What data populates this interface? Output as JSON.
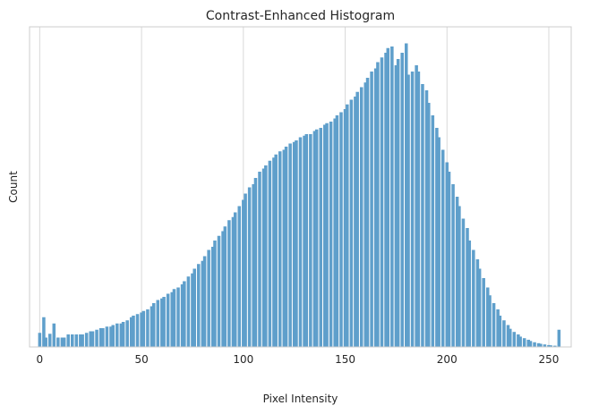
{
  "chart_data": {
    "type": "bar",
    "title": "Contrast-Enhanced Histogram",
    "xlabel": "Pixel Intensity",
    "ylabel": "Count",
    "xlim": [
      -5,
      261
    ],
    "ylim": [
      0,
      1.0
    ],
    "xticks": [
      0,
      50,
      100,
      150,
      200,
      250
    ],
    "grid": "vertical",
    "bar_color": "#5f9fcb",
    "x": [
      0,
      1,
      2,
      3,
      4,
      5,
      6,
      7,
      8,
      9,
      10,
      11,
      12,
      13,
      14,
      15,
      16,
      17,
      18,
      19,
      20,
      21,
      22,
      23,
      24,
      25,
      26,
      27,
      28,
      29,
      30,
      31,
      32,
      33,
      34,
      35,
      36,
      37,
      38,
      39,
      40,
      41,
      42,
      43,
      44,
      45,
      46,
      47,
      48,
      49,
      50,
      51,
      52,
      53,
      54,
      55,
      56,
      57,
      58,
      59,
      60,
      61,
      62,
      63,
      64,
      65,
      66,
      67,
      68,
      69,
      70,
      71,
      72,
      73,
      74,
      75,
      76,
      77,
      78,
      79,
      80,
      81,
      82,
      83,
      84,
      85,
      86,
      87,
      88,
      89,
      90,
      91,
      92,
      93,
      94,
      95,
      96,
      97,
      98,
      99,
      100,
      101,
      102,
      103,
      104,
      105,
      106,
      107,
      108,
      109,
      110,
      111,
      112,
      113,
      114,
      115,
      116,
      117,
      118,
      119,
      120,
      121,
      122,
      123,
      124,
      125,
      126,
      127,
      128,
      129,
      130,
      131,
      132,
      133,
      134,
      135,
      136,
      137,
      138,
      139,
      140,
      141,
      142,
      143,
      144,
      145,
      146,
      147,
      148,
      149,
      150,
      151,
      152,
      153,
      154,
      155,
      156,
      157,
      158,
      159,
      160,
      161,
      162,
      163,
      164,
      165,
      166,
      167,
      168,
      169,
      170,
      171,
      172,
      173,
      174,
      175,
      176,
      177,
      178,
      179,
      180,
      181,
      182,
      183,
      184,
      185,
      186,
      187,
      188,
      189,
      190,
      191,
      192,
      193,
      194,
      195,
      196,
      197,
      198,
      199,
      200,
      201,
      202,
      203,
      204,
      205,
      206,
      207,
      208,
      209,
      210,
      211,
      212,
      213,
      214,
      215,
      216,
      217,
      218,
      219,
      220,
      221,
      222,
      223,
      224,
      225,
      226,
      227,
      228,
      229,
      230,
      231,
      232,
      233,
      234,
      235,
      236,
      237,
      238,
      239,
      240,
      241,
      242,
      243,
      244,
      245,
      246,
      247,
      248,
      249,
      250,
      251,
      252,
      253,
      254,
      255
    ],
    "values": [
      0.045,
      0,
      0.095,
      0.03,
      0,
      0.042,
      0,
      0.075,
      0,
      0.03,
      0,
      0.03,
      0.03,
      0,
      0.04,
      0,
      0.04,
      0,
      0.04,
      0,
      0.04,
      0.04,
      0,
      0.045,
      0,
      0.05,
      0.05,
      0,
      0.055,
      0,
      0.06,
      0.06,
      0,
      0.065,
      0,
      0.065,
      0.07,
      0,
      0.075,
      0,
      0.075,
      0.08,
      0,
      0.085,
      0,
      0.095,
      0.1,
      0,
      0.105,
      0,
      0.11,
      0.115,
      0,
      0.12,
      0,
      0.13,
      0.14,
      0,
      0.15,
      0,
      0.155,
      0.16,
      0,
      0.17,
      0,
      0.175,
      0.185,
      0,
      0.19,
      0,
      0.2,
      0.21,
      0,
      0.225,
      0,
      0.235,
      0.25,
      0,
      0.265,
      0,
      0.275,
      0.29,
      0,
      0.31,
      0,
      0.32,
      0.34,
      0,
      0.355,
      0,
      0.37,
      0.385,
      0,
      0.405,
      0,
      0.415,
      0.43,
      0,
      0.45,
      0,
      0.47,
      0.49,
      0,
      0.51,
      0,
      0.52,
      0.54,
      0,
      0.56,
      0,
      0.57,
      0.58,
      0,
      0.595,
      0,
      0.605,
      0.615,
      0,
      0.625,
      0,
      0.63,
      0.64,
      0,
      0.65,
      0,
      0.655,
      0.66,
      0,
      0.67,
      0,
      0.675,
      0.68,
      0,
      0.68,
      0,
      0.69,
      0.695,
      0,
      0.7,
      0,
      0.71,
      0.715,
      0,
      0.72,
      0,
      0.73,
      0.74,
      0,
      0.75,
      0,
      0.76,
      0.775,
      0,
      0.79,
      0,
      0.8,
      0.815,
      0,
      0.83,
      0,
      0.845,
      0.86,
      0,
      0.88,
      0,
      0.89,
      0.91,
      0,
      0.925,
      0,
      0.94,
      0.955,
      0,
      0.96,
      0,
      0.9,
      0.92,
      0,
      0.94,
      0,
      0.97,
      0.87,
      0,
      0.88,
      0,
      0.9,
      0.88,
      0,
      0.84,
      0,
      0.82,
      0.78,
      0,
      0.74,
      0,
      0.7,
      0.67,
      0,
      0.63,
      0,
      0.59,
      0.56,
      0,
      0.52,
      0,
      0.48,
      0.45,
      0,
      0.41,
      0,
      0.38,
      0.34,
      0,
      0.31,
      0,
      0.28,
      0.25,
      0,
      0.22,
      0,
      0.19,
      0.165,
      0,
      0.14,
      0,
      0.12,
      0.1,
      0,
      0.085,
      0,
      0.07,
      0.058,
      0,
      0.048,
      0,
      0.04,
      0.033,
      0,
      0.028,
      0,
      0.023,
      0.019,
      0,
      0.015,
      0,
      0.012,
      0.01,
      0,
      0.008,
      0,
      0.006,
      0.005,
      0,
      0.004,
      0,
      0.055
    ]
  }
}
